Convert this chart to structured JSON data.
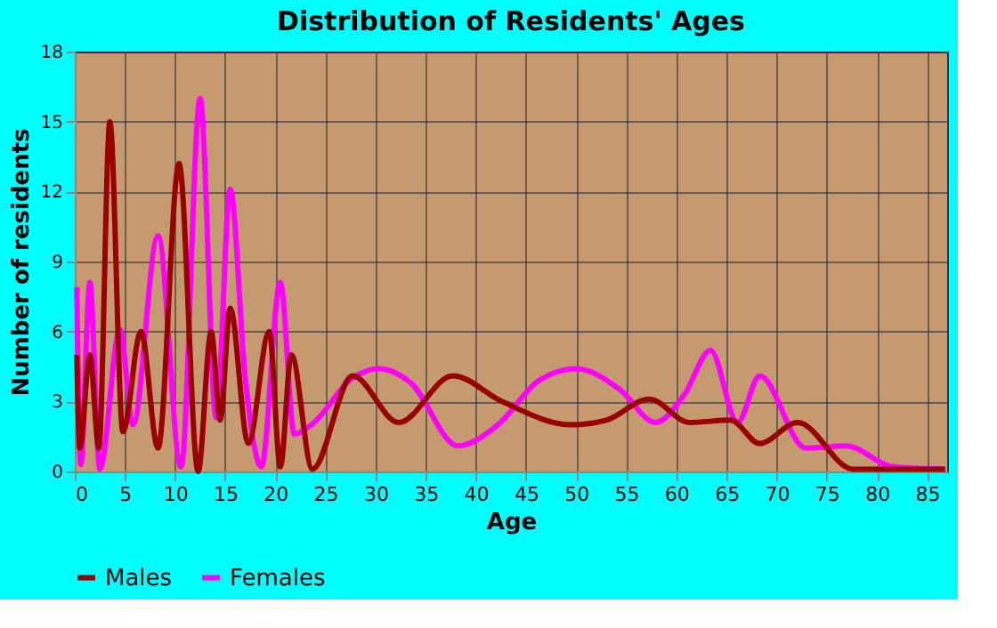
{
  "chart_data": {
    "type": "line",
    "title": "Distribution of Residents' Ages",
    "xlabel": "Age",
    "ylabel": "Number of residents",
    "xlim": [
      0,
      87
    ],
    "xticks": [
      0,
      5,
      10,
      15,
      20,
      25,
      30,
      35,
      40,
      45,
      50,
      55,
      60,
      65,
      70,
      75,
      80,
      85
    ],
    "ylim": [
      0,
      18
    ],
    "yticks": [
      0,
      3,
      6,
      9,
      12,
      15,
      18
    ],
    "grid": true,
    "legend": "bottom",
    "line_style": "solid",
    "marker": "none",
    "series": [
      {
        "name": "Males",
        "color": "#990000",
        "x": [
          0.2,
          0.5,
          1.5,
          2.4,
          3.5,
          4.8,
          6.6,
          8.3,
          10.4,
          12.3,
          13.6,
          14.5,
          15.5,
          17.3,
          19.4,
          20.5,
          21.6,
          23.7,
          27.7,
          32.3,
          37.7,
          42.6,
          49.5,
          53,
          57.3,
          61.3,
          65.4,
          68.3,
          72.1,
          77.6,
          86.8
        ],
        "values": [
          5,
          1,
          5,
          1,
          15,
          1.7,
          6,
          1,
          13.2,
          0,
          6,
          2.2,
          7,
          1.2,
          6,
          0.2,
          5,
          0.1,
          4.1,
          2.1,
          4.1,
          3,
          2,
          2.2,
          3.1,
          2.1,
          2.2,
          1.2,
          2.1,
          0.1,
          0.1
        ]
      },
      {
        "name": "Females",
        "color": "#ff00ff",
        "x": [
          0.2,
          0.6,
          1.5,
          2.5,
          4.5,
          5.8,
          8.3,
          10.6,
          12.5,
          14.1,
          15.5,
          17,
          18.6,
          20.5,
          21.9,
          23.6,
          27.7,
          30.3,
          33.5,
          38.2,
          42.2,
          46.3,
          50,
          54.4,
          57.9,
          60.8,
          63.4,
          66.1,
          68.3,
          72.9,
          76.9,
          81.6,
          86.8
        ],
        "values": [
          7.9,
          0.3,
          8.1,
          0.1,
          6.1,
          2,
          10.1,
          0.2,
          16,
          2.3,
          12.1,
          4,
          0.2,
          8.1,
          1.6,
          2,
          4,
          4.4,
          3.8,
          1.1,
          2,
          3.9,
          4.4,
          3.5,
          2.1,
          3.3,
          5.2,
          2.1,
          4.1,
          1,
          1.1,
          0.2,
          0.1
        ]
      }
    ]
  }
}
